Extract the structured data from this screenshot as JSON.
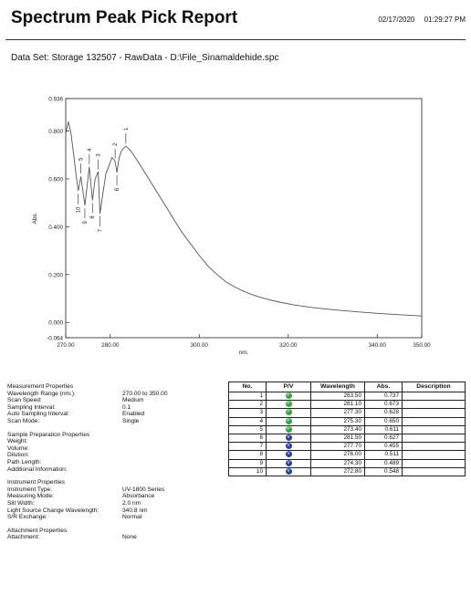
{
  "header": {
    "title": "Spectrum Peak Pick Report",
    "date": "02/17/2020",
    "time": "01:29:27 PM"
  },
  "dataset_line": "Data Set: Storage 132507 - RawData - D:\\File_Sinamaldehide.spc",
  "chart_data": {
    "type": "line",
    "xlabel": "nm.",
    "ylabel": "Abs.",
    "xlim": [
      270.0,
      350.0
    ],
    "ylim": [
      -0.064,
      0.936
    ],
    "x_ticks": [
      "270.00",
      "280.00",
      "300.00",
      "320.00",
      "340.00",
      "350.00"
    ],
    "y_ticks": [
      "0.936",
      "0.800",
      "0.600",
      "0.400",
      "0.200",
      "0.000",
      "-0.064"
    ],
    "series": [
      {
        "x": [
          270.0,
          270.6,
          271.2,
          271.8,
          272.3,
          272.8,
          273.4,
          274.3,
          275.3,
          276.0,
          276.6,
          277.3,
          277.7,
          278.2,
          279.0,
          279.8,
          280.4,
          281.1,
          281.5,
          282.0,
          282.6,
          283.5,
          284.5,
          286.0,
          288.0,
          290.0,
          292.0,
          294.0,
          296.0,
          298.0,
          300.0,
          302.0,
          304.0,
          306.0,
          308.0,
          310.0,
          312.0,
          315.0,
          318.0,
          321.0,
          325.0,
          330.0,
          335.0,
          340.0,
          345.0,
          350.0
        ],
        "y": [
          0.79,
          0.84,
          0.79,
          0.7,
          0.62,
          0.55,
          0.61,
          0.49,
          0.65,
          0.51,
          0.6,
          0.63,
          0.455,
          0.52,
          0.62,
          0.66,
          0.69,
          0.673,
          0.627,
          0.69,
          0.72,
          0.737,
          0.72,
          0.68,
          0.62,
          0.56,
          0.5,
          0.44,
          0.38,
          0.33,
          0.28,
          0.235,
          0.2,
          0.17,
          0.148,
          0.13,
          0.115,
          0.098,
          0.085,
          0.074,
          0.063,
          0.053,
          0.045,
          0.038,
          0.032,
          0.027
        ]
      }
    ],
    "peak_labels": [
      {
        "label": "1",
        "x": 283.5,
        "y": 0.737,
        "dir": "up"
      },
      {
        "label": "2",
        "x": 281.1,
        "y": 0.673,
        "dir": "up"
      },
      {
        "label": "3",
        "x": 277.3,
        "y": 0.628,
        "dir": "up"
      },
      {
        "label": "4",
        "x": 275.3,
        "y": 0.65,
        "dir": "up"
      },
      {
        "label": "5",
        "x": 273.4,
        "y": 0.611,
        "dir": "up"
      },
      {
        "label": "6",
        "x": 281.5,
        "y": 0.627,
        "dir": "down"
      },
      {
        "label": "7",
        "x": 277.7,
        "y": 0.455,
        "dir": "down"
      },
      {
        "label": "8",
        "x": 276.0,
        "y": 0.511,
        "dir": "down"
      },
      {
        "label": "9",
        "x": 274.3,
        "y": 0.489,
        "dir": "down"
      },
      {
        "label": "10",
        "x": 272.8,
        "y": 0.548,
        "dir": "down"
      }
    ],
    "grid": false
  },
  "measurement": {
    "heading": "Measurement Properties",
    "rows": [
      {
        "k": "Wavelength Range (nm.):",
        "v": "270.00 to 350.00"
      },
      {
        "k": "Scan Speed:",
        "v": "Medium"
      },
      {
        "k": "Sampling Interval:",
        "v": "0.1"
      },
      {
        "k": "Auto Sampling Interval:",
        "v": "Enabled"
      },
      {
        "k": "Scan Mode:",
        "v": "Single"
      }
    ]
  },
  "sample": {
    "heading": "Sample Preparation Properties",
    "rows": [
      {
        "k": "Weight:",
        "v": ""
      },
      {
        "k": "Volume:",
        "v": ""
      },
      {
        "k": "Dilution:",
        "v": ""
      },
      {
        "k": "Path Length:",
        "v": ""
      },
      {
        "k": "Additional Information:",
        "v": ""
      }
    ]
  },
  "instrument": {
    "heading": "Instrument Properties",
    "rows": [
      {
        "k": "Instrument Type:",
        "v": "UV-1800 Series"
      },
      {
        "k": "Measuring Mode:",
        "v": "Absorbance"
      },
      {
        "k": "Slit Width:",
        "v": "2.0 nm"
      },
      {
        "k": "Light Source Change Wavelength:",
        "v": "340.8 nm"
      },
      {
        "k": "S/R Exchange:",
        "v": "Normal"
      }
    ]
  },
  "attachment": {
    "heading": "Attachment Properties",
    "rows": [
      {
        "k": "Attachment:",
        "v": "None"
      }
    ]
  },
  "peak_table": {
    "headers": [
      "No.",
      "P/V",
      "Wavelength",
      "Abs.",
      "Description"
    ],
    "peak_color": "#2eaa3a",
    "valley_color": "#2a3fb0",
    "rows": [
      {
        "no": "1",
        "pv": "P",
        "wl": "283.50",
        "abs": "0.737",
        "desc": ""
      },
      {
        "no": "2",
        "pv": "P",
        "wl": "281.10",
        "abs": "0.673",
        "desc": ""
      },
      {
        "no": "3",
        "pv": "P",
        "wl": "277.30",
        "abs": "0.628",
        "desc": ""
      },
      {
        "no": "4",
        "pv": "P",
        "wl": "275.30",
        "abs": "0.650",
        "desc": ""
      },
      {
        "no": "5",
        "pv": "P",
        "wl": "273.40",
        "abs": "0.611",
        "desc": ""
      },
      {
        "no": "6",
        "pv": "V",
        "wl": "281.50",
        "abs": "0.627",
        "desc": ""
      },
      {
        "no": "7",
        "pv": "V",
        "wl": "277.70",
        "abs": "0.455",
        "desc": ""
      },
      {
        "no": "8",
        "pv": "V",
        "wl": "276.00",
        "abs": "0.511",
        "desc": ""
      },
      {
        "no": "9",
        "pv": "V",
        "wl": "274.30",
        "abs": "0.489",
        "desc": ""
      },
      {
        "no": "10",
        "pv": "V",
        "wl": "272.80",
        "abs": "0.548",
        "desc": ""
      }
    ]
  }
}
